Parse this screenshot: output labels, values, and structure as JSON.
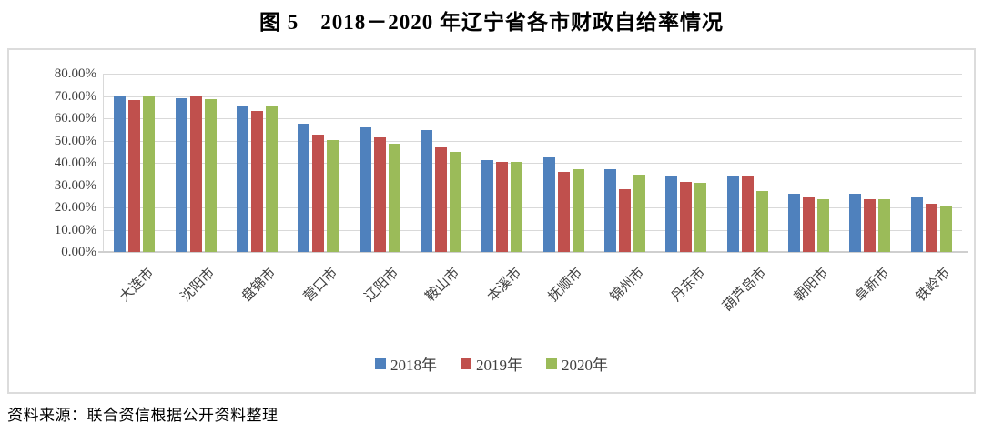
{
  "title": "图 5　2018－2020 年辽宁省各市财政自给率情况",
  "source_note": "资料来源：联合资信根据公开资料整理",
  "colors": {
    "series_2018": "#4F81BD",
    "series_2019": "#C0504D",
    "series_2020": "#9BBB59",
    "gridline": "#D9D9D9",
    "frame_border": "#DCDCDC",
    "axis_text": "#3F3F3F"
  },
  "chart_data": {
    "type": "bar",
    "title": "图 5　2018－2020 年辽宁省各市财政自给率情况",
    "categories": [
      "大连市",
      "沈阳市",
      "盘锦市",
      "营口市",
      "辽阳市",
      "鞍山市",
      "本溪市",
      "抚顺市",
      "锦州市",
      "丹东市",
      "葫芦岛市",
      "朝阳市",
      "阜新市",
      "铁岭市"
    ],
    "series": [
      {
        "name": "2018年",
        "color": "#4F81BD",
        "values": [
          70.2,
          69.0,
          65.8,
          57.7,
          56.0,
          54.6,
          41.2,
          42.6,
          37.3,
          33.8,
          34.4,
          26.3,
          26.2,
          24.4
        ]
      },
      {
        "name": "2019年",
        "color": "#C0504D",
        "values": [
          68.1,
          70.1,
          63.2,
          52.8,
          51.5,
          47.1,
          40.6,
          36.0,
          28.2,
          31.6,
          33.8,
          24.7,
          23.8,
          21.8
        ]
      },
      {
        "name": "2020年",
        "color": "#9BBB59",
        "values": [
          70.4,
          68.7,
          65.2,
          50.2,
          48.5,
          45.1,
          40.3,
          37.3,
          34.6,
          31.2,
          27.5,
          23.8,
          23.6,
          20.9
        ]
      }
    ],
    "xlabel": "",
    "ylabel": "",
    "ylim": [
      0,
      80
    ],
    "y_tick_step": 10,
    "y_ticks": [
      "80.00%",
      "70.00%",
      "60.00%",
      "50.00%",
      "40.00%",
      "30.00%",
      "20.00%",
      "10.00%",
      "0.00%"
    ],
    "grid": true,
    "legend_position": "bottom"
  }
}
